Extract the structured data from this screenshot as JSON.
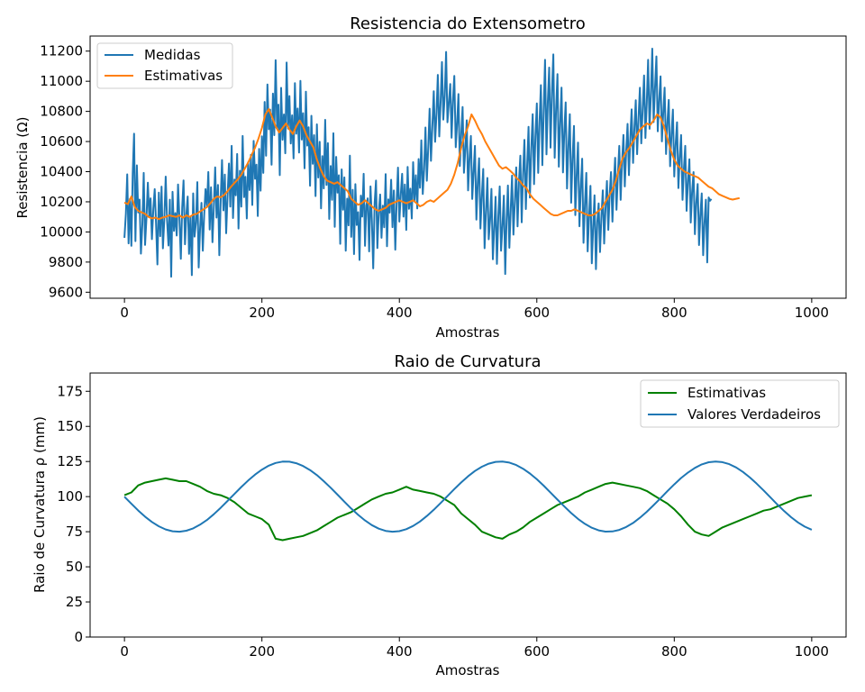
{
  "chart_data": [
    {
      "type": "line",
      "title": "Resistencia do Extensometro",
      "xlabel": "Amostras",
      "ylabel": "Resistencia (Ω)",
      "xlim": [
        -50,
        1050
      ],
      "ylim": [
        9560,
        11300
      ],
      "xticks": [
        "0",
        "200",
        "400",
        "600",
        "800",
        "1000"
      ],
      "yticks": [
        "9600",
        "9800",
        "10000",
        "10200",
        "10400",
        "10600",
        "10800",
        "11000",
        "11200"
      ],
      "legend_position": "top-left",
      "grid": false,
      "series": [
        {
          "name": "Medidas",
          "color": "#1f77b4",
          "x_range": [
            0,
            1000
          ],
          "x_step": 2,
          "values": [
            9961,
            10120,
            10382,
            9924,
            10219,
            9908,
            10389,
            10652,
            9939,
            10442,
            10129,
            10215,
            9856,
            10049,
            10392,
            9914,
            10087,
            10327,
            10103,
            10223,
            9952,
            10154,
            10284,
            10053,
            9784,
            10261,
            9972,
            10301,
            9891,
            10089,
            10367,
            10078,
            9910,
            10214,
            9703,
            10266,
            10007,
            10125,
            9976,
            10315,
            10082,
            9822,
            10163,
            10342,
            9918,
            10115,
            10235,
            9855,
            10103,
            9713,
            10256,
            9969,
            10062,
            10331,
            9764,
            10017,
            10193,
            9876,
            10112,
            10284,
            10173,
            10398,
            10016,
            10296,
            9932,
            10167,
            10429,
            10095,
            10312,
            9846,
            10208,
            10477,
            10143,
            10381,
            9991,
            10235,
            10454,
            10168,
            10571,
            10092,
            10348,
            10243,
            10517,
            10023,
            10406,
            10168,
            10637,
            10231,
            10366,
            10089,
            10462,
            10278,
            10512,
            10179,
            10604,
            10353,
            10447,
            10106,
            10551,
            10274,
            10635,
            10392,
            10863,
            10506,
            10979,
            10681,
            10812,
            10446,
            10918,
            10642,
            11140,
            10693,
            10845,
            10377,
            10956,
            10612,
            10780,
            10522,
            11124,
            10686,
            10902,
            10587,
            10774,
            10488,
            10987,
            10652,
            10819,
            10527,
            11002,
            10613,
            10788,
            10422,
            10931,
            10573,
            10695,
            10307,
            10771,
            10452,
            10642,
            10238,
            10714,
            10361,
            10598,
            10157,
            10503,
            10289,
            10744,
            10312,
            10589,
            10086,
            10437,
            10213,
            10655,
            10034,
            10498,
            10261,
            10376,
            9921,
            10415,
            10148,
            10362,
            9876,
            10221,
            10044,
            10506,
            9967,
            10280,
            9853,
            10317,
            10046,
            10131,
            9814,
            10241,
            10102,
            10386,
            9908,
            10176,
            10223,
            9871,
            10302,
            10076,
            9758,
            10193,
            10341,
            9893,
            10126,
            10248,
            9961,
            10174,
            10031,
            10384,
            9905,
            10216,
            10128,
            10346,
            10032,
            10275,
            9882,
            10198,
            10427,
            10069,
            10248,
            10386,
            10102,
            10315,
            10013,
            10432,
            10154,
            10287,
            10089,
            10463,
            10207,
            10376,
            10156,
            10484,
            10293,
            10608,
            10252,
            10414,
            10693,
            10340,
            10562,
            10818,
            10472,
            10693,
            10934,
            10598,
            10781,
            11042,
            10634,
            10860,
            11127,
            10746,
            10909,
            11195,
            10728,
            10853,
            10981,
            10625,
            10874,
            11036,
            10562,
            10718,
            10915,
            10438,
            10652,
            10829,
            10393,
            10546,
            10741,
            10276,
            10481,
            10637,
            10219,
            10398,
            10571,
            10082,
            10326,
            10489,
            10023,
            10244,
            10418,
            9892,
            10127,
            10358,
            9951,
            10079,
            10286,
            9819,
            10021,
            10233,
            9788,
            10112,
            10302,
            9876,
            10035,
            10241,
            9721,
            10078,
            10308,
            9895,
            10146,
            10374,
            9982,
            10203,
            10428,
            10037,
            10329,
            10506,
            10064,
            10382,
            10611,
            10152,
            10448,
            10697,
            10228,
            10564,
            10781,
            10317,
            10631,
            10853,
            10392,
            10728,
            10974,
            10443,
            10802,
            11142,
            10515,
            10864,
            11091,
            10559,
            10937,
            11178,
            10492,
            10803,
            11047,
            10433,
            10715,
            10958,
            10395,
            10668,
            10860,
            10288,
            10574,
            10781,
            10194,
            10482,
            10703,
            10112,
            10376,
            10593,
            10038,
            10297,
            10486,
            9928,
            10188,
            10392,
            9871,
            10094,
            10306,
            9792,
            10031,
            10243,
            9753,
            10067,
            10189,
            9867,
            10104,
            10276,
            9923,
            10152,
            10338,
            10014,
            10246,
            10397,
            10068,
            10319,
            10492,
            10147,
            10388,
            10571,
            10213,
            10462,
            10644,
            10302,
            10528,
            10717,
            10377,
            10614,
            10813,
            10458,
            10693,
            10874,
            10516,
            10762,
            10957,
            10588,
            10809,
            11038,
            10624,
            10856,
            11142,
            10685,
            10917,
            11216,
            10729,
            10963,
            11165,
            10668,
            10868,
            11032,
            10601,
            10794,
            10958,
            10517,
            10724,
            10876,
            10436,
            10653,
            10812,
            10368,
            10574,
            10728,
            10291,
            10496,
            10643,
            10213,
            10418,
            10571,
            10140,
            10339,
            10482,
            10062,
            10264,
            10397,
            9985,
            10192,
            10318,
            9913,
            10112,
            10256,
            9846,
            10063,
            10214,
            9798,
            10229,
            10207,
            10219
          ]
        },
        {
          "name": "Estimativas",
          "color": "#ff7f0e",
          "x_range": [
            0,
            1000
          ],
          "x_step": 5,
          "values": [
            10195,
            10185,
            10235,
            10165,
            10140,
            10130,
            10120,
            10100,
            10090,
            10095,
            10085,
            10095,
            10100,
            10110,
            10105,
            10100,
            10110,
            10095,
            10110,
            10100,
            10115,
            10120,
            10135,
            10150,
            10165,
            10190,
            10220,
            10235,
            10230,
            10245,
            10270,
            10300,
            10325,
            10350,
            10380,
            10420,
            10460,
            10510,
            10560,
            10620,
            10690,
            10780,
            10815,
            10760,
            10700,
            10660,
            10690,
            10720,
            10680,
            10650,
            10700,
            10740,
            10700,
            10640,
            10600,
            10560,
            10480,
            10420,
            10370,
            10340,
            10330,
            10320,
            10330,
            10310,
            10290,
            10270,
            10220,
            10200,
            10180,
            10190,
            10210,
            10190,
            10170,
            10150,
            10140,
            10150,
            10160,
            10180,
            10190,
            10200,
            10210,
            10200,
            10190,
            10200,
            10210,
            10190,
            10170,
            10180,
            10200,
            10210,
            10200,
            10220,
            10240,
            10260,
            10280,
            10320,
            10380,
            10460,
            10560,
            10640,
            10700,
            10780,
            10740,
            10690,
            10650,
            10600,
            10560,
            10520,
            10480,
            10440,
            10420,
            10430,
            10410,
            10390,
            10360,
            10340,
            10310,
            10290,
            10250,
            10220,
            10200,
            10180,
            10160,
            10140,
            10120,
            10110,
            10110,
            10120,
            10130,
            10140,
            10140,
            10150,
            10140,
            10130,
            10120,
            10110,
            10110,
            10120,
            10140,
            10160,
            10200,
            10240,
            10280,
            10340,
            10420,
            10490,
            10530,
            10560,
            10600,
            10640,
            10680,
            10700,
            10720,
            10710,
            10740,
            10780,
            10760,
            10700,
            10620,
            10540,
            10480,
            10440,
            10420,
            10400,
            10390,
            10380,
            10370,
            10360,
            10340,
            10320,
            10300,
            10290,
            10270,
            10250,
            10240,
            10230,
            10220,
            10215,
            10220,
            10225
          ]
        }
      ]
    },
    {
      "type": "line",
      "title": "Raio de Curvatura",
      "xlabel": "Amostras",
      "ylabel": "Raio de Curvatura ρ (mm)",
      "xlim": [
        -50,
        1050
      ],
      "ylim": [
        0,
        188
      ],
      "xticks": [
        "0",
        "200",
        "400",
        "600",
        "800",
        "1000"
      ],
      "yticks": [
        "0",
        "25",
        "50",
        "75",
        "100",
        "125",
        "150",
        "175"
      ],
      "legend_position": "top-right",
      "grid": false,
      "series": [
        {
          "name": "Estimativas",
          "color": "#008000",
          "x_range": [
            0,
            1000
          ],
          "x_step": 10,
          "values": [
            101,
            103,
            108,
            110,
            111,
            112,
            113,
            112,
            111,
            111,
            109,
            107,
            104,
            102,
            101,
            99,
            96,
            92,
            88,
            86,
            84,
            80,
            70,
            69,
            70,
            71,
            72,
            74,
            76,
            79,
            82,
            85,
            87,
            89,
            92,
            95,
            98,
            100,
            102,
            103,
            105,
            107,
            105,
            104,
            103,
            102,
            100,
            97,
            94,
            88,
            84,
            80,
            75,
            73,
            71,
            70,
            73,
            75,
            78,
            82,
            85,
            88,
            91,
            94,
            96,
            98,
            100,
            103,
            105,
            107,
            109,
            110,
            109,
            108,
            107,
            106,
            104,
            101,
            98,
            95,
            91,
            86,
            80,
            75,
            73,
            72,
            75,
            78,
            80,
            82,
            84,
            86,
            88,
            90,
            91,
            93,
            95,
            97,
            99,
            100,
            101
          ]
        },
        {
          "name": "Valores Verdadeiros",
          "color": "#1f77b4",
          "x_range": [
            0,
            1000
          ],
          "x_step": 10,
          "function": "100 - 25*cos(2*pi*(x - 78)/313)"
        }
      ]
    }
  ]
}
